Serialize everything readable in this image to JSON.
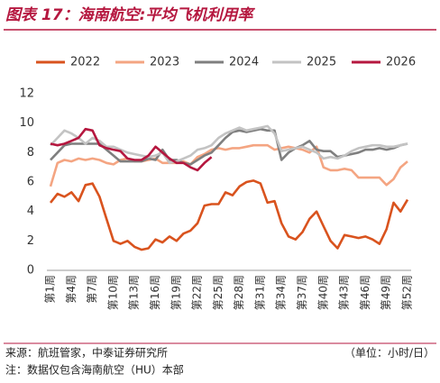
{
  "chart_data": {
    "type": "line",
    "title": "图表 17：海南航空:平均飞机利用率",
    "categories": [
      "第1周",
      null,
      null,
      "第4周",
      null,
      null,
      "第7周",
      null,
      null,
      "第10周",
      null,
      null,
      "第13周",
      null,
      null,
      "第16周",
      null,
      null,
      "第19周",
      null,
      null,
      "第22周",
      null,
      null,
      "第25周",
      null,
      null,
      "第28周",
      null,
      null,
      "第31周",
      null,
      null,
      "第34周",
      null,
      null,
      "第37周",
      null,
      null,
      "第40周",
      null,
      null,
      "第43周",
      null,
      null,
      "第46周",
      null,
      null,
      "第49周",
      null,
      null,
      "第52周"
    ],
    "series": [
      {
        "name": "2022",
        "color": "#d9531e",
        "values": [
          4.6,
          5.2,
          5.0,
          5.3,
          4.7,
          5.8,
          5.9,
          5.0,
          3.5,
          2.0,
          1.8,
          2.0,
          1.6,
          1.4,
          1.5,
          2.1,
          1.9,
          2.3,
          2.0,
          2.5,
          2.7,
          3.2,
          4.4,
          4.5,
          4.5,
          5.3,
          5.1,
          5.7,
          6.0,
          6.1,
          5.9,
          4.6,
          4.7,
          3.2,
          2.3,
          2.1,
          2.6,
          3.5,
          4.0,
          3.0,
          2.0,
          1.5,
          2.4,
          2.3,
          2.2,
          2.3,
          2.1,
          1.8,
          2.8,
          4.6,
          4.0,
          4.8
        ]
      },
      {
        "name": "2023",
        "color": "#f4a582",
        "values": [
          5.7,
          7.3,
          7.5,
          7.4,
          7.6,
          7.5,
          7.6,
          7.5,
          7.3,
          7.2,
          7.5,
          7.6,
          7.4,
          7.4,
          7.5,
          7.6,
          7.3,
          7.3,
          7.3,
          7.4,
          7.2,
          7.7,
          7.9,
          8.2,
          8.3,
          8.2,
          8.3,
          8.3,
          8.4,
          8.5,
          8.5,
          8.5,
          8.2,
          8.3,
          8.4,
          8.3,
          8.2,
          8.0,
          8.4,
          7.0,
          6.8,
          6.8,
          6.9,
          6.8,
          6.3,
          6.3,
          6.3,
          6.3,
          5.8,
          6.2,
          7.0,
          7.4
        ]
      },
      {
        "name": "2024",
        "color": "#7f7f7f",
        "values": [
          7.5,
          8.0,
          8.5,
          8.6,
          8.6,
          8.6,
          8.6,
          8.6,
          8.2,
          7.8,
          7.4,
          7.4,
          7.4,
          7.4,
          7.6,
          7.5,
          8.2,
          7.5,
          7.5,
          7.3,
          7.2,
          7.5,
          7.8,
          8.0,
          8.5,
          9.0,
          9.4,
          9.5,
          9.4,
          9.5,
          9.6,
          9.5,
          9.5,
          7.5,
          8.0,
          8.3,
          8.5,
          8.8,
          8.2,
          8.1,
          8.1,
          7.7,
          7.8,
          7.9,
          8.0,
          8.2,
          8.2,
          8.3,
          8.2,
          8.3,
          8.5,
          8.6
        ]
      },
      {
        "name": "2025",
        "color": "#c3c3c3",
        "values": [
          8.5,
          9.0,
          9.5,
          9.3,
          9.0,
          8.6,
          9.0,
          8.8,
          8.4,
          8.4,
          8.2,
          8.0,
          7.9,
          7.8,
          7.7,
          7.8,
          8.0,
          7.3,
          7.4,
          7.6,
          7.8,
          8.2,
          8.3,
          8.5,
          9.0,
          9.3,
          9.5,
          9.7,
          9.5,
          9.6,
          9.7,
          9.8,
          9.3,
          8.1,
          8.2,
          8.3,
          8.4,
          8.2,
          8.0,
          7.6,
          7.7,
          7.6,
          7.8,
          8.1,
          8.3,
          8.4,
          8.5,
          8.5,
          8.4,
          8.4,
          8.5,
          8.6
        ]
      },
      {
        "name": "2026",
        "color": "#b5173f",
        "values": [
          8.6,
          8.5,
          8.6,
          8.8,
          9.0,
          9.6,
          9.5,
          8.5,
          8.3,
          8.2,
          8.1,
          7.6,
          7.5,
          7.5,
          7.8,
          8.4,
          8.0,
          7.6,
          7.3,
          7.3,
          7.0,
          6.8,
          7.3,
          7.7,
          null,
          null,
          null,
          null,
          null,
          null,
          null,
          null,
          null,
          null,
          null,
          null,
          null,
          null,
          null,
          null,
          null,
          null,
          null,
          null,
          null,
          null,
          null,
          null,
          null,
          null,
          null,
          null
        ]
      }
    ],
    "ylim": [
      0,
      12
    ],
    "yticks": [
      0,
      2,
      4,
      6,
      8,
      10,
      12
    ],
    "grid": false
  },
  "footer": {
    "source": "来源：航班管家，中泰证券研究所",
    "unit": "（单位：小时/日）",
    "note": "注：数据仅包含海南航空（HU）本部"
  }
}
